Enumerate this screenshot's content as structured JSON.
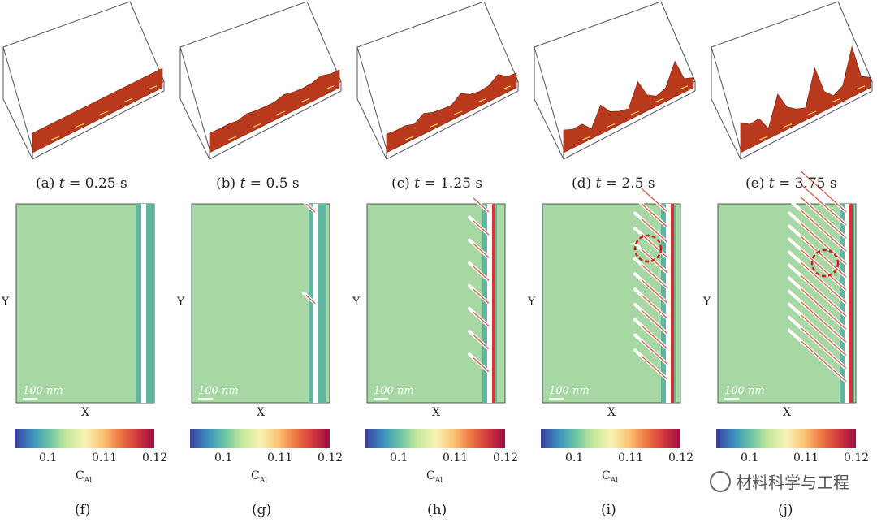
{
  "panels_3d": [
    {
      "letter": "(a)",
      "t": "0.25 s"
    },
    {
      "letter": "(b)",
      "t": "0.5 s"
    },
    {
      "letter": "(c)",
      "t": "1.25 s"
    },
    {
      "letter": "(d)",
      "t": "2.5 s"
    },
    {
      "letter": "(e)",
      "t": "3.75 s"
    }
  ],
  "maps": [
    {
      "id": "f",
      "letter": "(f)",
      "ylabel": "Y",
      "xlabel": "X",
      "scalebar": "100 nm"
    },
    {
      "id": "g",
      "letter": "(g)",
      "ylabel": "Y",
      "xlabel": "X",
      "scalebar": "100 nm"
    },
    {
      "id": "h",
      "letter": "(h)",
      "ylabel": "Y",
      "xlabel": "X",
      "scalebar": "100 nm"
    },
    {
      "id": "i",
      "letter": "(i)",
      "ylabel": "Y",
      "xlabel": "X",
      "scalebar": "100 nm"
    },
    {
      "id": "j",
      "letter": "(j)",
      "ylabel": "Y",
      "xlabel": "X",
      "scalebar": "100 nm"
    }
  ],
  "colorbar": {
    "label_main": "C",
    "label_sub": "Al",
    "ticks": [
      "0.1",
      "0.11",
      "0.12"
    ],
    "colors": [
      "#3b3f9e",
      "#3a8fbf",
      "#6cc6a6",
      "#c6e89a",
      "#f6f3b5",
      "#fbc776",
      "#f07a45",
      "#d23a3c",
      "#9c0b43"
    ]
  },
  "watermark": "材料科学与工程",
  "colors": {
    "field_green": "#a7d7a3",
    "alloy_red": "#b8391c",
    "box_line": "#555555"
  }
}
